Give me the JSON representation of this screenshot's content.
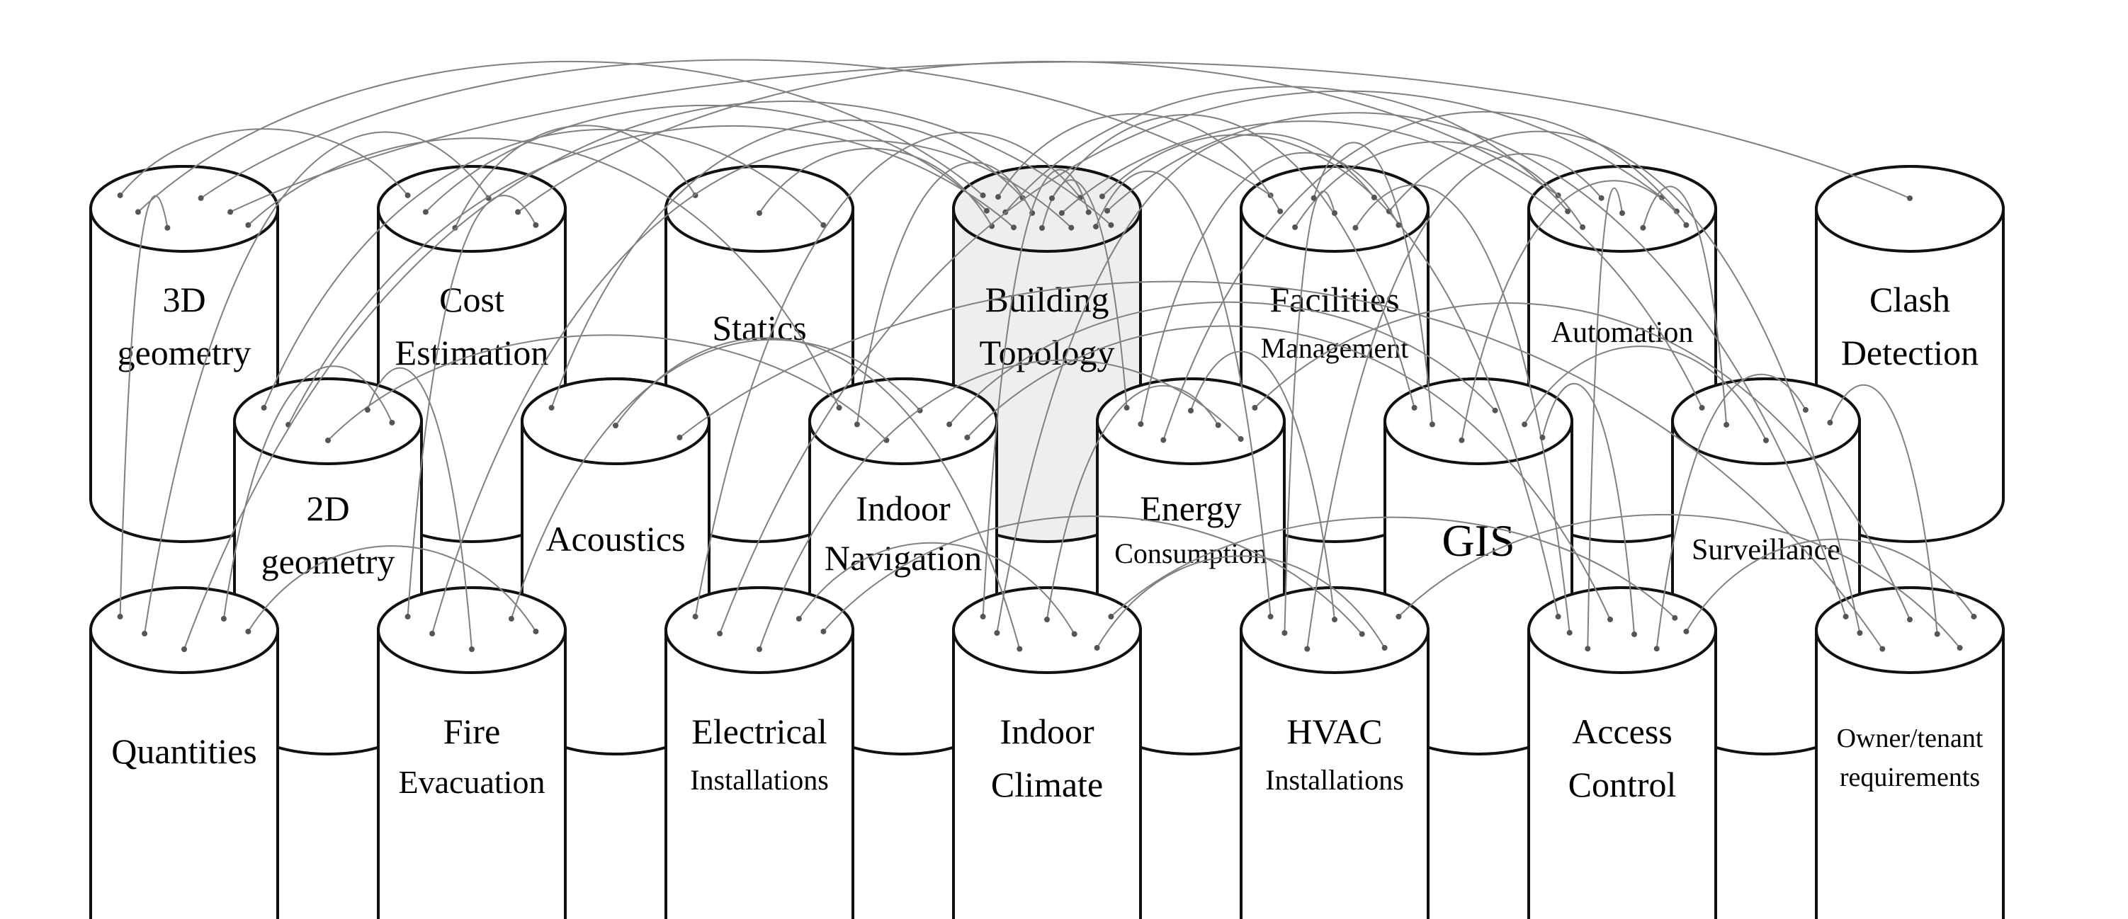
{
  "diagram": {
    "nodes": [
      {
        "id": "3d-geometry",
        "lines": [
          "3D",
          "geometry"
        ],
        "highlight": false
      },
      {
        "id": "cost-estimation",
        "lines": [
          "Cost",
          "Estimation"
        ],
        "highlight": false
      },
      {
        "id": "statics",
        "lines": [
          "Statics"
        ],
        "highlight": false
      },
      {
        "id": "building-topology",
        "lines": [
          "Building",
          "Topology"
        ],
        "highlight": true
      },
      {
        "id": "facilities-management",
        "lines": [
          "Facilities",
          "Management"
        ],
        "highlight": false
      },
      {
        "id": "automation",
        "lines": [
          "Automation"
        ],
        "highlight": false
      },
      {
        "id": "clash-detection",
        "lines": [
          "Clash",
          "Detection"
        ],
        "highlight": false
      },
      {
        "id": "2d-geometry",
        "lines": [
          "2D",
          "geometry"
        ],
        "highlight": false
      },
      {
        "id": "acoustics",
        "lines": [
          "Acoustics"
        ],
        "highlight": false
      },
      {
        "id": "indoor-navigation",
        "lines": [
          "Indoor",
          "Navigation"
        ],
        "highlight": false
      },
      {
        "id": "energy-consumption",
        "lines": [
          "Energy",
          "Consumption"
        ],
        "highlight": false
      },
      {
        "id": "gis",
        "lines": [
          "GIS"
        ],
        "highlight": false
      },
      {
        "id": "surveillance",
        "lines": [
          "Surveillance"
        ],
        "highlight": false
      },
      {
        "id": "quantities",
        "lines": [
          "Quantities"
        ],
        "highlight": false
      },
      {
        "id": "fire-evacuation",
        "lines": [
          "Fire",
          "Evacuation"
        ],
        "highlight": false
      },
      {
        "id": "electrical-installations",
        "lines": [
          "Electrical",
          "Installations"
        ],
        "highlight": false
      },
      {
        "id": "indoor-climate",
        "lines": [
          "Indoor",
          "Climate"
        ],
        "highlight": false
      },
      {
        "id": "hvac-installations",
        "lines": [
          "HVAC",
          "Installations"
        ],
        "highlight": false
      },
      {
        "id": "access-control",
        "lines": [
          "Access",
          "Control"
        ],
        "highlight": false
      },
      {
        "id": "owner-tenant-requirements",
        "lines": [
          "Owner/tenant",
          "requirements"
        ],
        "highlight": false
      }
    ],
    "connections": [
      [
        "3d-geometry",
        "cost-estimation"
      ],
      [
        "3d-geometry",
        "building-topology"
      ],
      [
        "3d-geometry",
        "quantities"
      ],
      [
        "3d-geometry",
        "facilities-management"
      ],
      [
        "3d-geometry",
        "clash-detection"
      ],
      [
        "3d-geometry",
        "indoor-navigation"
      ],
      [
        "cost-estimation",
        "building-topology"
      ],
      [
        "cost-estimation",
        "statics"
      ],
      [
        "cost-estimation",
        "quantities"
      ],
      [
        "cost-estimation",
        "automation"
      ],
      [
        "cost-estimation",
        "fire-evacuation"
      ],
      [
        "statics",
        "building-topology"
      ],
      [
        "statics",
        "2d-geometry"
      ],
      [
        "building-topology",
        "facilities-management"
      ],
      [
        "building-topology",
        "automation"
      ],
      [
        "building-topology",
        "2d-geometry"
      ],
      [
        "building-topology",
        "acoustics"
      ],
      [
        "building-topology",
        "indoor-navigation"
      ],
      [
        "building-topology",
        "energy-consumption"
      ],
      [
        "building-topology",
        "gis"
      ],
      [
        "building-topology",
        "surveillance"
      ],
      [
        "building-topology",
        "fire-evacuation"
      ],
      [
        "building-topology",
        "electrical-installations"
      ],
      [
        "building-topology",
        "indoor-climate"
      ],
      [
        "building-topology",
        "hvac-installations"
      ],
      [
        "building-topology",
        "access-control"
      ],
      [
        "building-topology",
        "owner-tenant-requirements"
      ],
      [
        "building-topology",
        "quantities"
      ],
      [
        "facilities-management",
        "automation"
      ],
      [
        "facilities-management",
        "gis"
      ],
      [
        "facilities-management",
        "hvac-installations"
      ],
      [
        "facilities-management",
        "access-control"
      ],
      [
        "facilities-management",
        "indoor-climate"
      ],
      [
        "facilities-management",
        "owner-tenant-requirements"
      ],
      [
        "facilities-management",
        "energy-consumption"
      ],
      [
        "automation",
        "hvac-installations"
      ],
      [
        "automation",
        "access-control"
      ],
      [
        "automation",
        "surveillance"
      ],
      [
        "automation",
        "electrical-installations"
      ],
      [
        "automation",
        "energy-consumption"
      ],
      [
        "automation",
        "gis"
      ],
      [
        "2d-geometry",
        "indoor-navigation"
      ],
      [
        "2d-geometry",
        "fire-evacuation"
      ],
      [
        "2d-geometry",
        "quantities"
      ],
      [
        "acoustics",
        "indoor-climate"
      ],
      [
        "acoustics",
        "owner-tenant-requirements"
      ],
      [
        "indoor-navigation",
        "fire-evacuation"
      ],
      [
        "indoor-navigation",
        "gis"
      ],
      [
        "indoor-navigation",
        "access-control"
      ],
      [
        "energy-consumption",
        "hvac-installations"
      ],
      [
        "energy-consumption",
        "indoor-climate"
      ],
      [
        "energy-consumption",
        "electrical-installations"
      ],
      [
        "energy-consumption",
        "owner-tenant-requirements"
      ],
      [
        "gis",
        "surveillance"
      ],
      [
        "gis",
        "access-control"
      ],
      [
        "surveillance",
        "access-control"
      ],
      [
        "surveillance",
        "owner-tenant-requirements"
      ],
      [
        "electrical-installations",
        "indoor-climate"
      ],
      [
        "electrical-installations",
        "hvac-installations"
      ],
      [
        "indoor-climate",
        "hvac-installations"
      ],
      [
        "indoor-climate",
        "access-control"
      ],
      [
        "hvac-installations",
        "owner-tenant-requirements"
      ],
      [
        "access-control",
        "owner-tenant-requirements"
      ],
      [
        "quantities",
        "fire-evacuation"
      ]
    ]
  }
}
